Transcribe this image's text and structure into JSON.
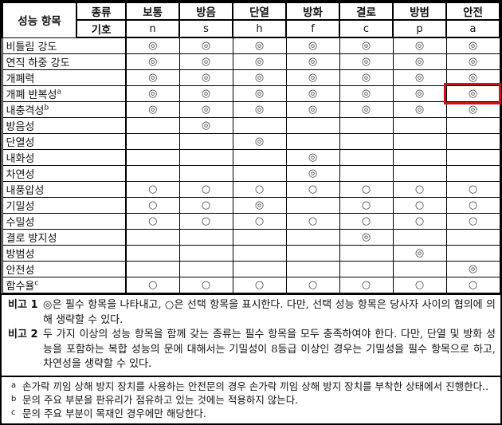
{
  "table": {
    "row_header_label": "성능 항목",
    "type_label": "종류",
    "symbol_label": "기호",
    "columns": [
      {
        "name": "보통",
        "symbol": "n"
      },
      {
        "name": "방음",
        "symbol": "s"
      },
      {
        "name": "단열",
        "symbol": "h"
      },
      {
        "name": "방화",
        "symbol": "f"
      },
      {
        "name": "결로",
        "symbol": "c"
      },
      {
        "name": "방범",
        "symbol": "p"
      },
      {
        "name": "안전",
        "symbol": "a"
      }
    ],
    "required_mark": "◎",
    "optional_mark": "○",
    "rows": [
      {
        "label": "비틀림 강도",
        "sup": "",
        "cells": [
          "◎",
          "◎",
          "◎",
          "◎",
          "◎",
          "◎",
          "◎"
        ]
      },
      {
        "label": "연직 하중 강도",
        "sup": "",
        "cells": [
          "◎",
          "◎",
          "◎",
          "◎",
          "◎",
          "◎",
          "◎"
        ]
      },
      {
        "label": "개폐력",
        "sup": "",
        "cells": [
          "◎",
          "◎",
          "◎",
          "◎",
          "◎",
          "◎",
          "◎"
        ]
      },
      {
        "label": "개폐 반복성",
        "sup": "a",
        "cells": [
          "◎",
          "◎",
          "◎",
          "◎",
          "◎",
          "◎",
          "◎"
        ]
      },
      {
        "label": "내충격성",
        "sup": "b",
        "cells": [
          "◎",
          "◎",
          "◎",
          "◎",
          "◎",
          "◎",
          "◎"
        ]
      },
      {
        "label": "방음성",
        "sup": "",
        "cells": [
          "",
          "◎",
          "",
          "",
          "",
          "",
          ""
        ]
      },
      {
        "label": "단열성",
        "sup": "",
        "cells": [
          "",
          "",
          "◎",
          "",
          "",
          "",
          ""
        ]
      },
      {
        "label": "내화성",
        "sup": "",
        "cells": [
          "",
          "",
          "",
          "◎",
          "",
          "",
          ""
        ]
      },
      {
        "label": "차연성",
        "sup": "",
        "cells": [
          "",
          "",
          "",
          "◎",
          "",
          "",
          ""
        ]
      },
      {
        "label": "내풍압성",
        "sup": "",
        "cells": [
          "○",
          "○",
          "○",
          "○",
          "○",
          "○",
          "○"
        ]
      },
      {
        "label": "기밀성",
        "sup": "",
        "cells": [
          "○",
          "○",
          "◎",
          "",
          "○",
          "○",
          "○"
        ]
      },
      {
        "label": "수밀성",
        "sup": "",
        "cells": [
          "○",
          "○",
          "○",
          "○",
          "○",
          "○",
          "○"
        ]
      },
      {
        "label": "결로 방지성",
        "sup": "",
        "cells": [
          "",
          "",
          "",
          "",
          "◎",
          "",
          ""
        ]
      },
      {
        "label": "방범성",
        "sup": "",
        "cells": [
          "",
          "",
          "",
          "",
          "",
          "◎",
          ""
        ]
      },
      {
        "label": "안전성",
        "sup": "",
        "cells": [
          "",
          "",
          "",
          "",
          "",
          "",
          "◎"
        ]
      },
      {
        "label": "함수율",
        "sup": "c",
        "cells": [
          "○",
          "○",
          "○",
          "○",
          "○",
          "○",
          "○"
        ]
      }
    ],
    "highlight": {
      "row_index": 3,
      "col_index": 6,
      "color": "#c81414"
    }
  },
  "notes": [
    {
      "label": "비고 1",
      "text": "◎은 필수 항목을 나타내고, ○은 선택 항목을 표시한다. 다만, 선택 성능 항목은 당사자 사이의 협의에 의해 생략할 수 있다."
    },
    {
      "label": "비고 2",
      "text": "두 가지 이상의 성능 항목을 함께 갖는 종류는 필수 항목을 모두 충족하여야 한다. 다만, 단열 및 방화 성능을 포함하는 복합 성능의 문에 대해서는 기밀성이 8등급 이상인 경우는 기밀성을 필수 항목으로 하고, 차연성을 생략할 수 있다."
    }
  ],
  "footnotes": [
    {
      "marker": "a",
      "text": "손가락 끼임 상해 방지 장치를 사용하는 안전문의 경우 손가락 끼임 상해 방지 장치를 부착한 상태에서 진행한다.."
    },
    {
      "marker": "b",
      "text": "문의 주요 부분을 판유리가 점유하고 있는 것에는 적용하지 않는다."
    },
    {
      "marker": "c",
      "text": "문의 주요 부분이 목재인 경우에만 해당한다."
    }
  ]
}
